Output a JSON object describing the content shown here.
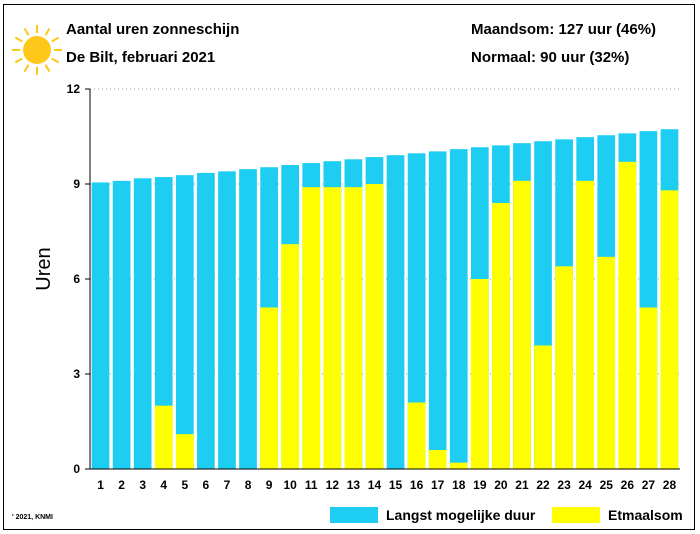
{
  "header": {
    "title": "Aantal uren zonneschijn",
    "subtitle": "De Bilt, februari 2021",
    "stat_month": "Maandsom: 127 uur (46%)",
    "stat_normal": "Normaal: 90 uur (32%)"
  },
  "footer": {
    "credit": "' 2021, KNMI"
  },
  "colors": {
    "max_duration": "#1ecdf2",
    "actual": "#ffff00",
    "sun": "#ffc71a"
  },
  "chart_data": {
    "type": "bar",
    "categories": [
      "1",
      "2",
      "3",
      "4",
      "5",
      "6",
      "7",
      "8",
      "9",
      "10",
      "11",
      "12",
      "13",
      "14",
      "15",
      "16",
      "17",
      "18",
      "19",
      "20",
      "21",
      "22",
      "23",
      "24",
      "25",
      "26",
      "27",
      "28"
    ],
    "ylabel": "Uren",
    "ylim": [
      0,
      12
    ],
    "yticks": [
      0,
      3,
      6,
      9,
      12
    ],
    "series": [
      {
        "name": "Langst mogelijke duur",
        "values": [
          9.05,
          9.1,
          9.18,
          9.22,
          9.28,
          9.35,
          9.4,
          9.47,
          9.53,
          9.6,
          9.66,
          9.72,
          9.78,
          9.85,
          9.91,
          9.97,
          10.03,
          10.1,
          10.16,
          10.22,
          10.29,
          10.35,
          10.41,
          10.48,
          10.54,
          10.6,
          10.67,
          10.73
        ]
      },
      {
        "name": "Etmaalsom",
        "values": [
          0,
          0,
          0,
          2.0,
          1.1,
          0,
          0,
          0,
          5.1,
          7.1,
          8.9,
          8.9,
          8.9,
          9.0,
          0,
          2.1,
          0.6,
          0.2,
          6.0,
          8.4,
          9.1,
          3.9,
          6.4,
          9.1,
          6.7,
          9.7,
          5.1,
          8.8
        ]
      }
    ],
    "legend_position": "bottom-right"
  }
}
